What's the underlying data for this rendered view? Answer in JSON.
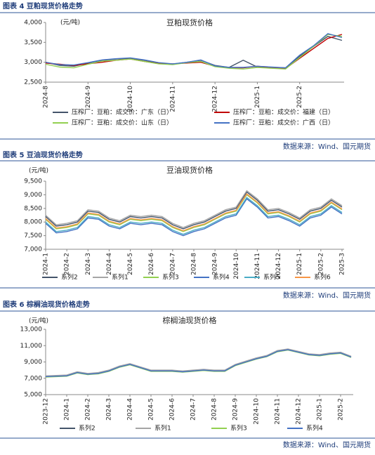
{
  "chart_data": [
    {
      "type": "line",
      "caption": "图表 4 豆粕现货价格走势",
      "title": "豆粕现货价格",
      "unit": "(元/吨)",
      "source": "数据来源：Wind、国元期货",
      "categories": [
        "2024-8",
        null,
        null,
        "2024-9",
        null,
        null,
        "2024-10",
        null,
        null,
        "2024-11",
        null,
        null,
        "2024-12",
        null,
        null,
        "2025-1",
        null,
        null,
        "2025-2",
        null,
        null,
        null
      ],
      "ylim": [
        2500,
        4000
      ],
      "yticks": [
        {
          "value": 2500,
          "label": "2,500"
        },
        {
          "value": 3000,
          "label": "3,000"
        },
        {
          "value": 3500,
          "label": "3,500"
        },
        {
          "value": 4000,
          "label": "4,000"
        }
      ],
      "series": [
        {
          "name": "压榨厂：豆粕：成交价：广东（日）",
          "color": "#44546a",
          "values": [
            3000,
            2920,
            2900,
            2980,
            3050,
            3080,
            3100,
            3050,
            2980,
            2950,
            3000,
            3050,
            2920,
            2870,
            3050,
            2880,
            2870,
            2860,
            3150,
            3400,
            3650,
            3550
          ]
        },
        {
          "name": "压榨厂：豆粕：成交价：福建（日）",
          "color": "#c00000",
          "values": [
            2980,
            2950,
            2920,
            2960,
            3000,
            3050,
            3080,
            3020,
            2970,
            2960,
            2980,
            3000,
            2900,
            2860,
            2860,
            2900,
            2870,
            2840,
            3100,
            3350,
            3600,
            3700
          ]
        },
        {
          "name": "压榨厂：豆粕：成交价：山东（日）",
          "color": "#92d050",
          "values": [
            2950,
            2880,
            2860,
            2950,
            3030,
            3050,
            3080,
            3020,
            2960,
            2940,
            2990,
            3020,
            2890,
            2850,
            2830,
            2870,
            2850,
            2830,
            3120,
            3400,
            3700,
            3650
          ]
        },
        {
          "name": "压榨厂：豆粕：成交价：广西（日）",
          "color": "#4472c4",
          "values": [
            3000,
            2940,
            2930,
            2990,
            3060,
            3090,
            3110,
            3060,
            2990,
            2960,
            3000,
            3060,
            2910,
            2870,
            2870,
            2900,
            2880,
            2860,
            3180,
            3420,
            3720,
            3620
          ]
        }
      ]
    },
    {
      "type": "line",
      "caption": "图表 5 豆油现货价格走势",
      "title": "豆油现货价格",
      "unit": "(元/吨)",
      "source": "数据来源：Wind、国元期货",
      "categories": [
        "2024-1",
        null,
        "2024-2",
        null,
        "2024-3",
        null,
        "2024-4",
        null,
        "2024-5",
        null,
        "2024-6",
        null,
        "2024-7",
        null,
        "2024-8",
        null,
        "2024-9",
        null,
        "2024-10",
        null,
        "2024-11",
        null,
        "2024-12",
        null,
        "2025-1",
        null,
        "2025-2",
        null,
        "2025-3"
      ],
      "ylim": [
        7000,
        9500
      ],
      "yticks": [
        {
          "value": 7000,
          "label": "7,000"
        },
        {
          "value": 7500,
          "label": "7,500"
        },
        {
          "value": 8000,
          "label": "8,000"
        },
        {
          "value": 8500,
          "label": "8,500"
        },
        {
          "value": 9000,
          "label": "9,000"
        },
        {
          "value": 9500,
          "label": "9,500"
        }
      ],
      "series": [
        {
          "name": "系列2",
          "color": "#44546a",
          "values": [
            8200,
            7850,
            7900,
            8000,
            8400,
            8350,
            8100,
            8000,
            8200,
            8150,
            8200,
            8150,
            7900,
            7750,
            7900,
            8000,
            8200,
            8400,
            8500,
            9100,
            8800,
            8400,
            8450,
            8300,
            8100,
            8400,
            8500,
            8800,
            8550
          ]
        },
        {
          "name": "系列1",
          "color": "#a5a5a5",
          "values": [
            8250,
            7900,
            7950,
            8050,
            8450,
            8400,
            8150,
            8050,
            8250,
            8200,
            8250,
            8200,
            7950,
            7800,
            7950,
            8050,
            8250,
            8450,
            8550,
            9150,
            8850,
            8450,
            8500,
            8350,
            8150,
            8450,
            8550,
            8850,
            8600
          ]
        },
        {
          "name": "系列3",
          "color": "#92d050",
          "values": [
            8100,
            7750,
            7800,
            7900,
            8300,
            8250,
            8000,
            7900,
            8100,
            8050,
            8100,
            8050,
            7800,
            7650,
            7800,
            7900,
            8100,
            8300,
            8400,
            9000,
            8700,
            8300,
            8350,
            8200,
            8000,
            8300,
            8400,
            8700,
            8450
          ]
        },
        {
          "name": "系列4",
          "color": "#4472c4",
          "values": [
            7950,
            7600,
            7650,
            7750,
            8150,
            8100,
            7850,
            7750,
            7950,
            7900,
            7950,
            7900,
            7650,
            7500,
            7650,
            7750,
            7950,
            8150,
            8250,
            8850,
            8550,
            8150,
            8200,
            8050,
            7850,
            8150,
            8250,
            8550,
            8300
          ]
        },
        {
          "name": "系列5",
          "color": "#4bacc6",
          "values": [
            8000,
            7650,
            7700,
            7800,
            8200,
            8150,
            7900,
            7800,
            8000,
            7950,
            8000,
            7950,
            7700,
            7550,
            7700,
            7800,
            8000,
            8200,
            8300,
            8900,
            8600,
            8200,
            8250,
            8100,
            7900,
            8200,
            8300,
            8600,
            8350
          ]
        },
        {
          "name": "系列6",
          "color": "#f79646",
          "values": [
            8130,
            7780,
            7830,
            7930,
            8330,
            8280,
            8030,
            7930,
            8130,
            8080,
            8130,
            8080,
            7830,
            7680,
            7830,
            7930,
            8130,
            8330,
            8430,
            9030,
            8730,
            8330,
            8380,
            8230,
            8030,
            8330,
            8430,
            8730,
            8480
          ]
        }
      ]
    },
    {
      "type": "line",
      "caption": "图表 6 棕榈油现货价格走势",
      "title": "棕榈油现货价格",
      "unit": "(元/吨)",
      "source": "数据来源：Wind、国元期货",
      "categories": [
        "2023-12",
        null,
        "2024-1",
        null,
        "2024-2",
        null,
        "2024-3",
        null,
        "2024-4",
        null,
        "2024-5",
        null,
        "2024-6",
        null,
        "2024-7",
        null,
        "2024-8",
        null,
        "2024-9",
        null,
        "2024-10",
        null,
        "2024-11",
        null,
        "2024-12",
        null,
        "2025-1",
        null,
        "2025-2",
        null
      ],
      "ylim": [
        5000,
        13000
      ],
      "yticks": [
        {
          "value": 5000,
          "label": "5,000"
        },
        {
          "value": 7000,
          "label": "7,000"
        },
        {
          "value": 9000,
          "label": "9,000"
        },
        {
          "value": 11000,
          "label": "11,000"
        },
        {
          "value": 13000,
          "label": "13,000"
        }
      ],
      "series": [
        {
          "name": "系列2",
          "color": "#44546a",
          "values": [
            7250,
            7300,
            7350,
            7750,
            7550,
            7650,
            7950,
            8450,
            8750,
            8350,
            7950,
            7950,
            7950,
            7850,
            7950,
            8050,
            7950,
            7950,
            8650,
            9050,
            9450,
            9750,
            10350,
            10550,
            10250,
            9950,
            9850,
            10050,
            10150,
            9650
          ]
        },
        {
          "name": "系列1",
          "color": "#a5a5a5",
          "values": [
            7300,
            7350,
            7400,
            7800,
            7600,
            7700,
            8000,
            8500,
            8800,
            8400,
            8000,
            8000,
            8000,
            7900,
            8000,
            8100,
            8000,
            8000,
            8700,
            9100,
            9500,
            9800,
            10400,
            10600,
            10300,
            10000,
            9900,
            10100,
            10200,
            9700
          ]
        },
        {
          "name": "系列3",
          "color": "#92d050",
          "values": [
            7150,
            7200,
            7250,
            7650,
            7450,
            7550,
            7850,
            8350,
            8650,
            8250,
            7850,
            7850,
            7850,
            7750,
            7850,
            7950,
            7850,
            7850,
            8550,
            8950,
            9350,
            9650,
            10250,
            10450,
            10150,
            9850,
            9750,
            9950,
            10050,
            9550
          ]
        },
        {
          "name": "系列4",
          "color": "#4472c4",
          "values": [
            7200,
            7250,
            7300,
            7700,
            7500,
            7600,
            7900,
            8400,
            8700,
            8300,
            7900,
            7900,
            7900,
            7800,
            7900,
            8000,
            7900,
            7900,
            8600,
            9000,
            9400,
            9700,
            10300,
            10500,
            10200,
            9900,
            9800,
            10000,
            10100,
            9600
          ]
        }
      ]
    }
  ]
}
